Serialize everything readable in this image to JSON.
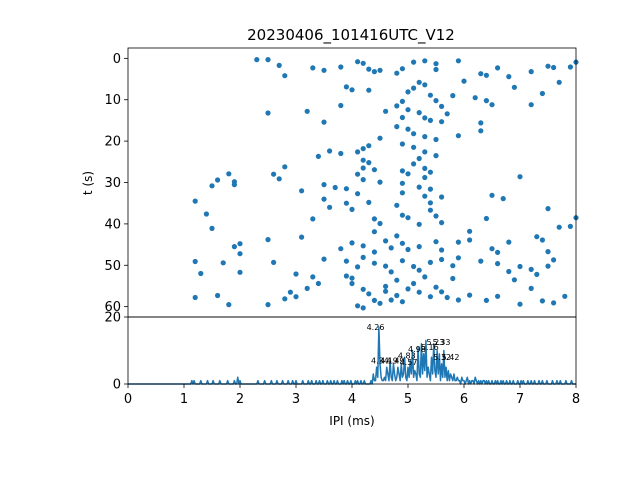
{
  "chart_data": [
    {
      "type": "scatter",
      "title": "20230406_101416UTC_V12",
      "xlabel": "",
      "ylabel": "t (s)",
      "xlim": [
        0,
        8
      ],
      "ylim": [
        62.5,
        -2.5
      ],
      "y_inverted": true,
      "yticks": [
        0,
        10,
        20,
        30,
        40,
        50,
        60
      ],
      "grid": false,
      "marker_color": "#1f77b4",
      "points": [
        [
          2.3,
          0.3
        ],
        [
          2.5,
          0.3
        ],
        [
          2.7,
          1.7
        ],
        [
          2.8,
          4.2
        ],
        [
          3.3,
          2.3
        ],
        [
          3.5,
          2.9
        ],
        [
          3.8,
          2.1
        ],
        [
          4.1,
          0.8
        ],
        [
          4.2,
          1.2
        ],
        [
          4.3,
          2.6
        ],
        [
          4.4,
          3.2
        ],
        [
          4.5,
          2.9
        ],
        [
          4.8,
          3.6
        ],
        [
          4.9,
          2.5
        ],
        [
          5.1,
          0.9
        ],
        [
          5.3,
          0.6
        ],
        [
          5.5,
          1.3
        ],
        [
          5.5,
          2.7
        ],
        [
          5.9,
          0.6
        ],
        [
          6.3,
          3.7
        ],
        [
          6.6,
          2.3
        ],
        [
          6.4,
          4.1
        ],
        [
          7.2,
          3.2
        ],
        [
          7.5,
          1.9
        ],
        [
          7.6,
          2.2
        ],
        [
          7.7,
          5.8
        ],
        [
          7.9,
          2.1
        ],
        [
          8.0,
          0.9
        ],
        [
          7.4,
          8.5
        ],
        [
          7.2,
          11.2
        ],
        [
          4.0,
          7.6
        ],
        [
          4.6,
          12.8
        ],
        [
          4.8,
          11.5
        ],
        [
          4.9,
          10.4
        ],
        [
          5.0,
          8.1
        ],
        [
          5.1,
          7.2
        ],
        [
          5.2,
          5.8
        ],
        [
          5.3,
          6.4
        ],
        [
          5.4,
          8.9
        ],
        [
          5.5,
          10.2
        ],
        [
          5.6,
          11.6
        ],
        [
          5.2,
          13.1
        ],
        [
          5.3,
          14.4
        ],
        [
          5.4,
          15.0
        ],
        [
          5.6,
          15.3
        ],
        [
          5.7,
          13.4
        ],
        [
          5.8,
          9.0
        ],
        [
          6.0,
          5.5
        ],
        [
          6.2,
          9.5
        ],
        [
          6.4,
          10.2
        ],
        [
          6.5,
          11.2
        ],
        [
          6.9,
          7.0
        ],
        [
          6.8,
          4.4
        ],
        [
          5.0,
          12.4
        ],
        [
          4.9,
          14.3
        ],
        [
          2.5,
          13.2
        ],
        [
          3.2,
          12.8
        ],
        [
          3.5,
          15.4
        ],
        [
          3.8,
          11.4
        ],
        [
          3.9,
          6.9
        ],
        [
          4.3,
          7.7
        ],
        [
          4.8,
          16.5
        ],
        [
          5.0,
          17.1
        ],
        [
          5.1,
          18.2
        ],
        [
          5.3,
          18.9
        ],
        [
          5.5,
          19.6
        ],
        [
          5.9,
          18.7
        ],
        [
          6.3,
          17.5
        ],
        [
          6.3,
          15.6
        ],
        [
          4.5,
          19.3
        ],
        [
          4.3,
          21.1
        ],
        [
          4.2,
          21.8
        ],
        [
          4.1,
          22.6
        ],
        [
          4.9,
          20.7
        ],
        [
          5.1,
          21.5
        ],
        [
          5.3,
          22.6
        ],
        [
          5.5,
          23.5
        ],
        [
          5.2,
          24.2
        ],
        [
          5.1,
          25.5
        ],
        [
          4.2,
          24.6
        ],
        [
          4.3,
          25.2
        ],
        [
          4.2,
          26.5
        ],
        [
          4.4,
          26.9
        ],
        [
          3.8,
          23.0
        ],
        [
          3.6,
          22.4
        ],
        [
          3.4,
          23.7
        ],
        [
          4.9,
          27.2
        ],
        [
          5.0,
          27.9
        ],
        [
          5.3,
          26.6
        ],
        [
          5.4,
          27.5
        ],
        [
          5.3,
          28.8
        ],
        [
          4.1,
          28.0
        ],
        [
          4.2,
          29.3
        ],
        [
          4.5,
          29.9
        ],
        [
          2.8,
          26.2
        ],
        [
          2.6,
          28.0
        ],
        [
          2.7,
          29.1
        ],
        [
          3.1,
          32.0
        ],
        [
          3.5,
          30.5
        ],
        [
          3.7,
          31.2
        ],
        [
          3.9,
          31.5
        ],
        [
          4.1,
          32.7
        ],
        [
          1.8,
          27.9
        ],
        [
          1.9,
          29.8
        ],
        [
          1.6,
          29.4
        ],
        [
          1.9,
          30.5
        ],
        [
          1.5,
          30.8
        ],
        [
          1.2,
          34.5
        ],
        [
          1.4,
          37.6
        ],
        [
          1.5,
          41.1
        ],
        [
          2.5,
          43.8
        ],
        [
          3.1,
          43.2
        ],
        [
          3.9,
          35.0
        ],
        [
          4.0,
          36.5
        ],
        [
          4.3,
          34.8
        ],
        [
          4.4,
          38.8
        ],
        [
          4.5,
          39.9
        ],
        [
          4.4,
          41.9
        ],
        [
          4.8,
          35.5
        ],
        [
          4.9,
          37.9
        ],
        [
          5.0,
          38.5
        ],
        [
          5.2,
          40.1
        ],
        [
          5.4,
          36.7
        ],
        [
          5.5,
          38.1
        ],
        [
          5.6,
          39.7
        ],
        [
          5.2,
          31.1
        ],
        [
          5.3,
          33.3
        ],
        [
          5.4,
          31.6
        ],
        [
          4.9,
          32.5
        ],
        [
          4.9,
          30.2
        ],
        [
          5.6,
          33.5
        ],
        [
          5.4,
          34.9
        ],
        [
          6.5,
          33.1
        ],
        [
          6.7,
          33.9
        ],
        [
          7.0,
          28.6
        ],
        [
          7.5,
          36.3
        ],
        [
          7.7,
          40.8
        ],
        [
          7.9,
          40.6
        ],
        [
          8.0,
          38.5
        ],
        [
          6.4,
          38.7
        ],
        [
          6.1,
          41.8
        ],
        [
          3.5,
          34.0
        ],
        [
          3.6,
          36.0
        ],
        [
          3.3,
          38.8
        ],
        [
          3.8,
          46.0
        ],
        [
          4.0,
          44.6
        ],
        [
          4.2,
          45.3
        ],
        [
          4.4,
          46.8
        ],
        [
          4.6,
          44.1
        ],
        [
          4.7,
          45.8
        ],
        [
          4.9,
          44.7
        ],
        [
          5.0,
          46.2
        ],
        [
          5.2,
          45.5
        ],
        [
          5.5,
          44.3
        ],
        [
          5.6,
          46.3
        ],
        [
          5.9,
          44.4
        ],
        [
          6.1,
          43.9
        ],
        [
          6.5,
          46.0
        ],
        [
          6.6,
          46.9
        ],
        [
          6.8,
          44.4
        ],
        [
          7.3,
          43.1
        ],
        [
          7.4,
          43.9
        ],
        [
          7.5,
          46.7
        ],
        [
          2.0,
          44.8
        ],
        [
          1.9,
          45.5
        ],
        [
          2.0,
          47.2
        ],
        [
          1.2,
          49.1
        ],
        [
          1.3,
          52.0
        ],
        [
          1.7,
          49.4
        ],
        [
          2.0,
          51.7
        ],
        [
          2.6,
          49.3
        ],
        [
          3.5,
          48.5
        ],
        [
          3.9,
          49.0
        ],
        [
          4.1,
          50.4
        ],
        [
          4.2,
          48.1
        ],
        [
          4.4,
          49.5
        ],
        [
          4.6,
          50.2
        ],
        [
          4.7,
          51.6
        ],
        [
          4.9,
          48.9
        ],
        [
          5.1,
          50.3
        ],
        [
          5.2,
          51.2
        ],
        [
          5.4,
          49.3
        ],
        [
          5.6,
          48.6
        ],
        [
          5.8,
          50.1
        ],
        [
          5.9,
          48.2
        ],
        [
          6.3,
          49.0
        ],
        [
          6.6,
          49.6
        ],
        [
          6.8,
          51.5
        ],
        [
          7.0,
          50.3
        ],
        [
          7.2,
          51.0
        ],
        [
          7.3,
          52.2
        ],
        [
          7.5,
          50.2
        ],
        [
          7.6,
          48.7
        ],
        [
          3.0,
          52.1
        ],
        [
          3.3,
          52.8
        ],
        [
          3.4,
          54.4
        ],
        [
          3.2,
          55.6
        ],
        [
          2.9,
          56.5
        ],
        [
          3.0,
          57.6
        ],
        [
          2.8,
          58.1
        ],
        [
          2.5,
          59.5
        ],
        [
          1.8,
          59.5
        ],
        [
          1.6,
          57.3
        ],
        [
          1.2,
          57.8
        ],
        [
          3.9,
          52.6
        ],
        [
          4.0,
          54.4
        ],
        [
          4.2,
          55.8
        ],
        [
          4.3,
          56.9
        ],
        [
          4.4,
          58.5
        ],
        [
          4.5,
          59.2
        ],
        [
          4.6,
          56.3
        ],
        [
          4.8,
          57.3
        ],
        [
          4.9,
          58.8
        ],
        [
          5.0,
          55.7
        ],
        [
          5.1,
          54.4
        ],
        [
          5.2,
          56.5
        ],
        [
          5.4,
          57.6
        ],
        [
          5.5,
          55.3
        ],
        [
          5.6,
          56.4
        ],
        [
          5.7,
          57.8
        ],
        [
          5.9,
          58.4
        ],
        [
          6.1,
          57.2
        ],
        [
          6.4,
          58.5
        ],
        [
          6.6,
          57.5
        ],
        [
          7.0,
          59.4
        ],
        [
          7.2,
          55.6
        ],
        [
          7.4,
          58.6
        ],
        [
          7.6,
          59.1
        ],
        [
          7.8,
          57.5
        ],
        [
          6.9,
          53.5
        ],
        [
          4.1,
          59.8
        ],
        [
          4.2,
          60.3
        ],
        [
          4.7,
          58.4
        ],
        [
          4.6,
          55.1
        ],
        [
          4.0,
          53.1
        ],
        [
          4.8,
          53.6
        ],
        [
          5.3,
          52.8
        ],
        [
          5.8,
          53.2
        ],
        [
          4.8,
          42.9
        ]
      ]
    },
    {
      "type": "line",
      "xlabel": "IPI (ms)",
      "ylabel": "",
      "xlim": [
        0,
        8
      ],
      "ylim": [
        0,
        20
      ],
      "xticks": [
        0,
        1,
        2,
        3,
        4,
        5,
        6,
        7,
        8
      ],
      "yticks": [
        0,
        20
      ],
      "grid": false,
      "line_color": "#1f77b4",
      "x_start": 0.0,
      "x_step": 0.02,
      "y": [
        0,
        0,
        0,
        0,
        0,
        0,
        0,
        0,
        0,
        0,
        0,
        0,
        0,
        0,
        0,
        0,
        0,
        0,
        0,
        0,
        0,
        0,
        0,
        0,
        0,
        0,
        0,
        0,
        0,
        0,
        0,
        0,
        0,
        0,
        0,
        0,
        0,
        0,
        0,
        0,
        0,
        0,
        0,
        0,
        0,
        0,
        0,
        0,
        0,
        0,
        0,
        0,
        0,
        0,
        0,
        0,
        0,
        1,
        0,
        1,
        0,
        0,
        0,
        0,
        0,
        1,
        0,
        0,
        0,
        0,
        0,
        1,
        0,
        0,
        0,
        0,
        1,
        0,
        0,
        0,
        0,
        0,
        1,
        0,
        0,
        0,
        0,
        0,
        0,
        1,
        0,
        0,
        0,
        0,
        0,
        1,
        0,
        0,
        2,
        0,
        1,
        0,
        0,
        0,
        0,
        0,
        0,
        0,
        0,
        0,
        0,
        0,
        0,
        0,
        0,
        0,
        1,
        0,
        0,
        0,
        0,
        0,
        1,
        0,
        0,
        0,
        0,
        0,
        1,
        0,
        0,
        0,
        0,
        1,
        0,
        0,
        0,
        0,
        1,
        0,
        0,
        0,
        0,
        1,
        0,
        0,
        0,
        1,
        0,
        0,
        1,
        0,
        0,
        0,
        0,
        0,
        1,
        0,
        0,
        0,
        0,
        1,
        0,
        0,
        1,
        0,
        0,
        0,
        1,
        0,
        0,
        1,
        0,
        0,
        1,
        0,
        0,
        0,
        1,
        0,
        0,
        1,
        0,
        0,
        1,
        0,
        0,
        1,
        0,
        0,
        0,
        1,
        0,
        1,
        0,
        0,
        1,
        0,
        0,
        1,
        0,
        0,
        0,
        1,
        0,
        1,
        0,
        0,
        1,
        0,
        0,
        1,
        0,
        0,
        0,
        0,
        0,
        1,
        0,
        3,
        1,
        1,
        5,
        2,
        17,
        6,
        2,
        1,
        1,
        2,
        1,
        5,
        3,
        1,
        7,
        2,
        1,
        6,
        3,
        1,
        2,
        5,
        3,
        1,
        6,
        2,
        3,
        8,
        2,
        1,
        5,
        2,
        7,
        3,
        10,
        2,
        4,
        3,
        1,
        11,
        3,
        2,
        12,
        3,
        9,
        4,
        13,
        2,
        5,
        3,
        1,
        8,
        3,
        12,
        4,
        2,
        10,
        3,
        9,
        1,
        6,
        2,
        10,
        2,
        5,
        1,
        4,
        1,
        3,
        2,
        1,
        3,
        1,
        1,
        2,
        1,
        1,
        0,
        2,
        1,
        1,
        0,
        1,
        2,
        0,
        1,
        0,
        1,
        1,
        0,
        2,
        1,
        0,
        1,
        0,
        1,
        0,
        1,
        1,
        0,
        1,
        0,
        1,
        0,
        0,
        1,
        0,
        0,
        1,
        0,
        1,
        0,
        0,
        1,
        0,
        1,
        0,
        0,
        1,
        0,
        0,
        1,
        0,
        0,
        1,
        0,
        0,
        0,
        1,
        0,
        0,
        1,
        0,
        1,
        0,
        0,
        0,
        1,
        0,
        0,
        1,
        0,
        0,
        1,
        0,
        0,
        0,
        1,
        0,
        0,
        1,
        0,
        0,
        0,
        1,
        0,
        0,
        0,
        0,
        1,
        0,
        0,
        0,
        1,
        0,
        0,
        1,
        0,
        0,
        0,
        0,
        1,
        0,
        0,
        0,
        0,
        1,
        0,
        0,
        0,
        0,
        0,
        1,
        0,
        0,
        0,
        0,
        0,
        0,
        0
      ],
      "annotations": [
        {
          "x": 4.26,
          "y": 17,
          "text": "4.26"
        },
        {
          "x": 4.34,
          "y": 7,
          "text": "4.34"
        },
        {
          "x": 4.5,
          "y": 7,
          "text": "4.19"
        },
        {
          "x": 4.62,
          "y": 7,
          "text": "4.49"
        },
        {
          "x": 4.85,
          "y": 6.5,
          "text": "4.57"
        },
        {
          "x": 4.82,
          "y": 8.5,
          "text": "4.83"
        },
        {
          "x": 5.0,
          "y": 10.5,
          "text": "4.98"
        },
        {
          "x": 5.23,
          "y": 11,
          "text": "5.16"
        },
        {
          "x": 5.33,
          "y": 12.5,
          "text": "5.23"
        },
        {
          "x": 5.44,
          "y": 12.5,
          "text": "5.33"
        },
        {
          "x": 5.45,
          "y": 8,
          "text": "5.32"
        },
        {
          "x": 5.6,
          "y": 8,
          "text": "5.42"
        }
      ]
    }
  ]
}
